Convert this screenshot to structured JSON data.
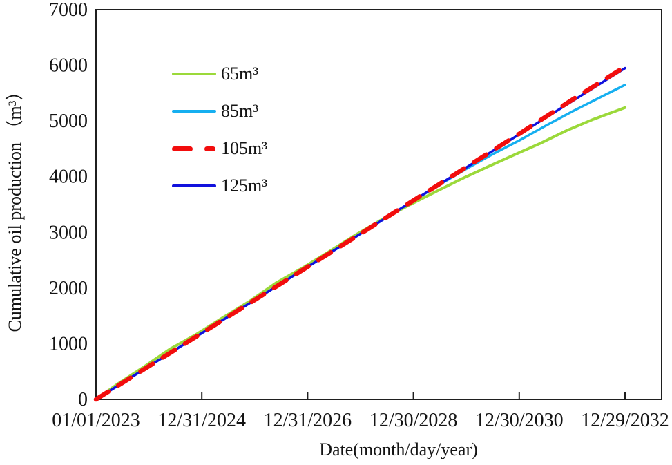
{
  "axes": {
    "y": {
      "label": "Cumulative oil production （m³）",
      "min": 0,
      "max": 7000,
      "step": 1000
    },
    "x": {
      "label": "Date(month/day/year)"
    }
  },
  "legend": {
    "items": [
      {
        "label": "65m³",
        "color": "#9bd93a",
        "dashed": false,
        "thickness": 4
      },
      {
        "label": "85m³",
        "color": "#16aff0",
        "dashed": false,
        "thickness": 4
      },
      {
        "label": "105m³",
        "color": "#f20d0d",
        "dashed": true,
        "thickness": 7
      },
      {
        "label": "125m³",
        "color": "#1111dd",
        "dashed": false,
        "thickness": 4
      }
    ]
  },
  "chart_data": {
    "type": "line",
    "title": "",
    "xlabel": "Date(month/day/year)",
    "ylabel": "Cumulative oil production (m³)",
    "x_unit": "years since 01/01/2023, one tick every 2 years",
    "x_tick_labels": [
      "01/01/2023",
      "12/31/2024",
      "12/31/2026",
      "12/30/2028",
      "12/30/2030",
      "12/29/2032"
    ],
    "y_tick_labels": [
      "0",
      "1000",
      "2000",
      "3000",
      "4000",
      "5000",
      "6000",
      "7000"
    ],
    "xlim_years": [
      0,
      10.7
    ],
    "ylim": [
      0,
      7000
    ],
    "grid": false,
    "frame": true,
    "legend_position": "inside upper-left",
    "series": [
      {
        "name": "65m3",
        "label": "65m³",
        "color": "#9bd93a",
        "width": 4,
        "dash": null,
        "points": [
          [
            0,
            0
          ],
          [
            0.4,
            270
          ],
          [
            0.9,
            580
          ],
          [
            1.4,
            905
          ],
          [
            1.9,
            1170
          ],
          [
            2.4,
            1470
          ],
          [
            2.9,
            1760
          ],
          [
            3.4,
            2090
          ],
          [
            3.9,
            2360
          ],
          [
            4.4,
            2650
          ],
          [
            4.9,
            2950
          ],
          [
            5.4,
            3230
          ],
          [
            5.9,
            3480
          ],
          [
            6.4,
            3720
          ],
          [
            6.9,
            3955
          ],
          [
            7.4,
            4175
          ],
          [
            7.9,
            4390
          ],
          [
            8.4,
            4600
          ],
          [
            8.9,
            4830
          ],
          [
            9.4,
            5030
          ],
          [
            9.7,
            5135
          ],
          [
            10,
            5240
          ]
        ]
      },
      {
        "name": "85m3",
        "label": "85m³",
        "color": "#16aff0",
        "width": 3.5,
        "dash": null,
        "points": [
          [
            0,
            0
          ],
          [
            1,
            595
          ],
          [
            2,
            1190
          ],
          [
            3,
            1785
          ],
          [
            4,
            2380
          ],
          [
            5,
            2975
          ],
          [
            6,
            3570
          ],
          [
            6.5,
            3860
          ],
          [
            7,
            4140
          ],
          [
            7.5,
            4405
          ],
          [
            8,
            4650
          ],
          [
            8.5,
            4915
          ],
          [
            9,
            5170
          ],
          [
            9.5,
            5410
          ],
          [
            10,
            5650
          ]
        ]
      },
      {
        "name": "125m3",
        "label": "125m³",
        "color": "#1111dd",
        "width": 3.5,
        "dash": null,
        "points": [
          [
            0,
            0
          ],
          [
            5,
            2975
          ],
          [
            10,
            5950
          ]
        ]
      },
      {
        "name": "105m3",
        "label": "105m³",
        "color": "#f20d0d",
        "width": 6.5,
        "dash": "21 17",
        "points": [
          [
            0,
            0
          ],
          [
            5,
            2975
          ],
          [
            8,
            4770
          ],
          [
            9,
            5380
          ],
          [
            10,
            5975
          ]
        ]
      }
    ]
  }
}
